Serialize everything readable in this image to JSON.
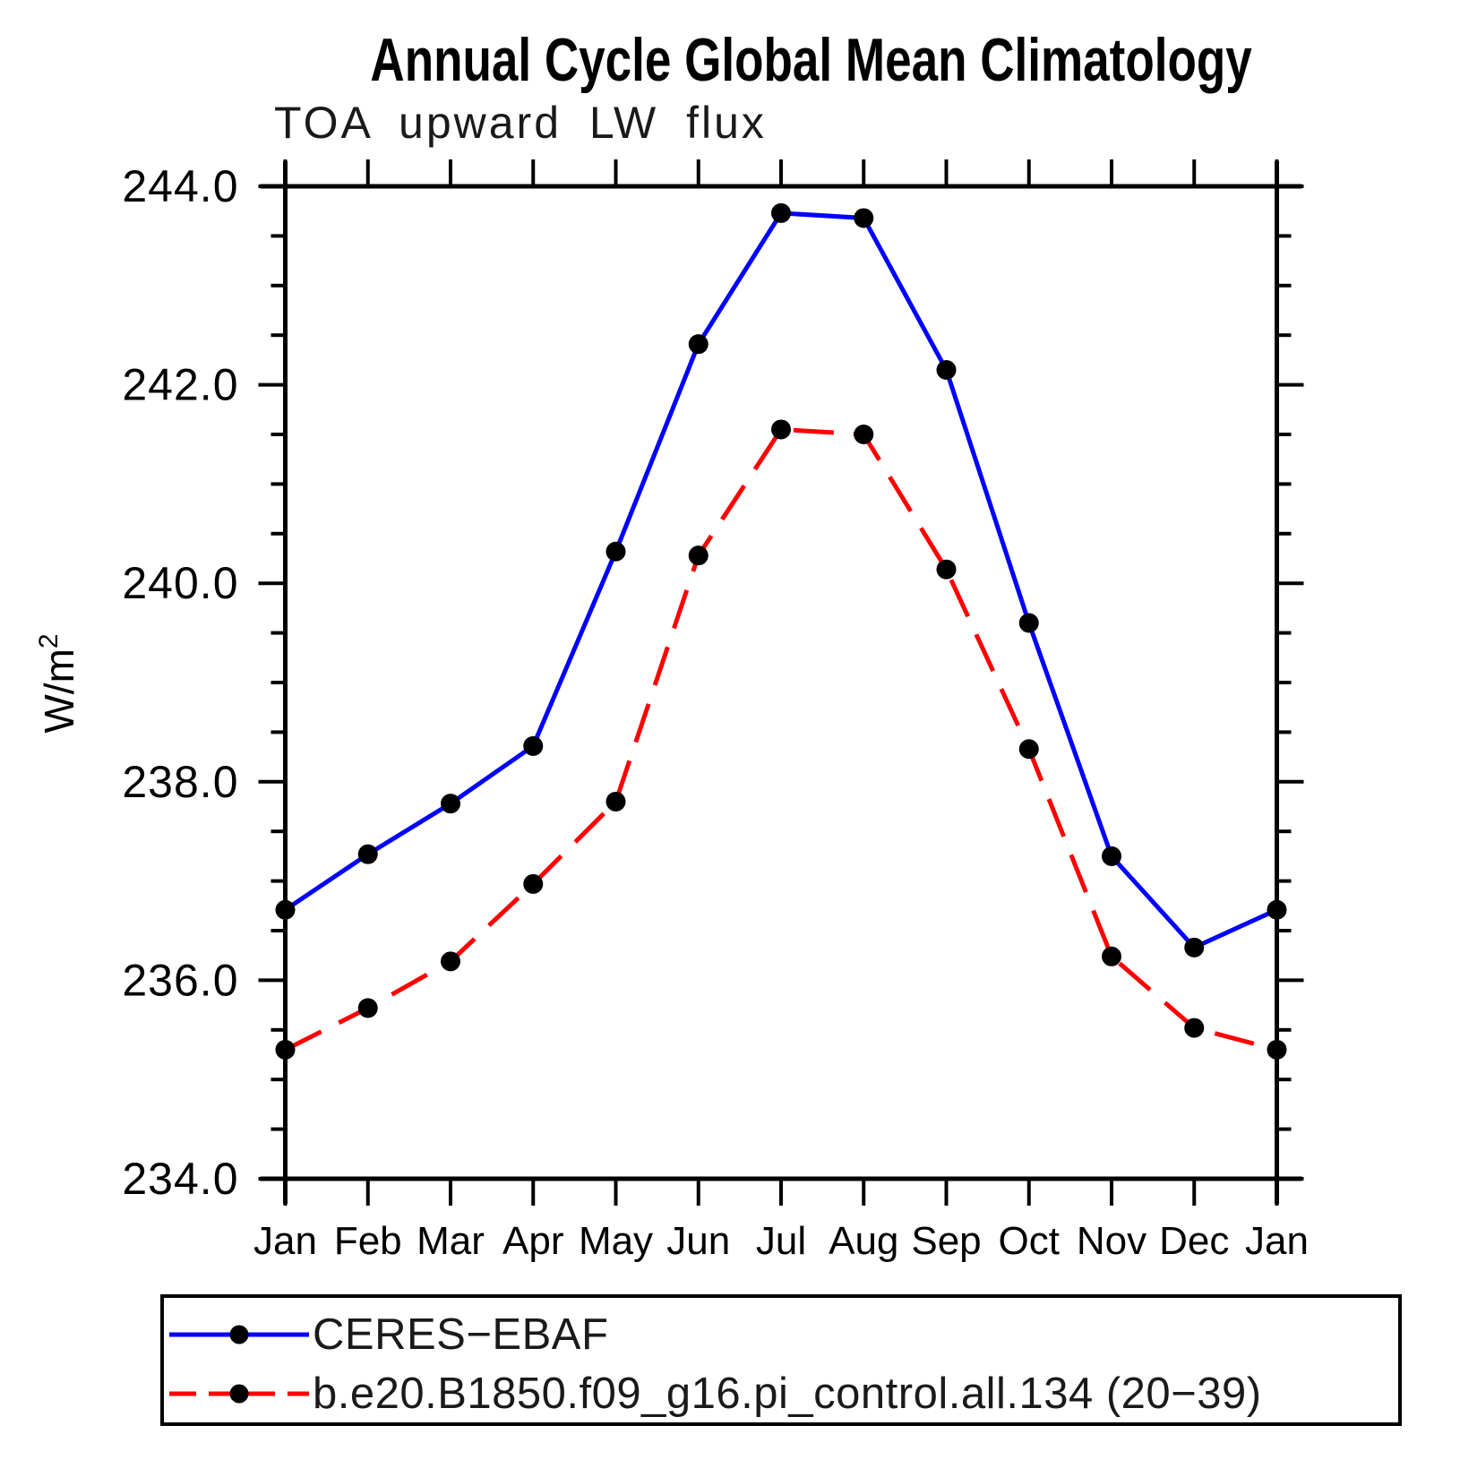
{
  "chart": {
    "title": "Annual Cycle Global Mean Climatology",
    "subtitle": "TOA upward LW flux",
    "ylabel_main": "W/m",
    "ylabel_exp": "2",
    "axis_color": "#000000",
    "background": "#ffffff"
  },
  "chart_data": {
    "type": "line",
    "title": "Annual Cycle Global Mean Climatology",
    "subtitle": "TOA upward LW flux",
    "ylabel": "W/m^2",
    "xlabel": "",
    "categories": [
      "Jan",
      "Feb",
      "Mar",
      "Apr",
      "May",
      "Jun",
      "Jul",
      "Aug",
      "Sep",
      "Oct",
      "Nov",
      "Dec",
      "Jan"
    ],
    "ylim": [
      234.0,
      244.0
    ],
    "ytick_major_interval": 2.0,
    "ytick_minor_interval": 0.5,
    "ytick_labels": [
      "234.0",
      "236.0",
      "238.0",
      "240.0",
      "242.0",
      "244.0"
    ],
    "grid": false,
    "legend_position": "bottom-left-box",
    "marker": {
      "shape": "circle",
      "color": "#000000",
      "radius_px": 11
    },
    "series": [
      {
        "name": "CERES-EBAF",
        "label": "CERES−EBAF",
        "color": "#0000ff",
        "style": "solid",
        "values": [
          236.71,
          237.27,
          237.78,
          238.36,
          240.32,
          242.41,
          243.73,
          243.68,
          242.15,
          239.6,
          237.25,
          236.33,
          236.71
        ]
      },
      {
        "name": "b.e20.B1850.f09_g16.pi_control.all.134 (20-39)",
        "label": "b.e20.B1850.f09_g16.pi_control.all.134 (20−39)",
        "color": "#ff0000",
        "style": "dashed",
        "values": [
          235.3,
          235.72,
          236.19,
          236.97,
          237.8,
          240.28,
          241.55,
          241.5,
          240.14,
          238.33,
          236.24,
          235.52,
          235.3
        ]
      }
    ]
  }
}
